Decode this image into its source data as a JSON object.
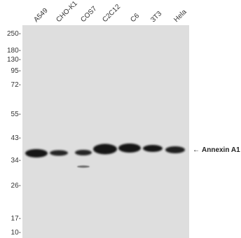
{
  "lanes": [
    "A549",
    "CHO-K1",
    "COS7",
    "C2C12",
    "C6",
    "3T3",
    "Hela"
  ],
  "markers": [
    {
      "label": "250-",
      "kda": 250
    },
    {
      "label": "180-",
      "kda": 180
    },
    {
      "label": "130-",
      "kda": 130
    },
    {
      "label": "95-",
      "kda": 95
    },
    {
      "label": "72-",
      "kda": 72
    },
    {
      "label": "55-",
      "kda": 55
    },
    {
      "label": "43-",
      "kda": 43
    },
    {
      "label": "34-",
      "kda": 34
    },
    {
      "label": "26-",
      "kda": 26
    },
    {
      "label": "17-",
      "kda": 17
    },
    {
      "label": "10-",
      "kda": 10
    }
  ],
  "target": {
    "arrow": "←",
    "name": "Annexin A1"
  },
  "colors": {
    "membrane": "#dedede",
    "band": "#151515"
  }
}
